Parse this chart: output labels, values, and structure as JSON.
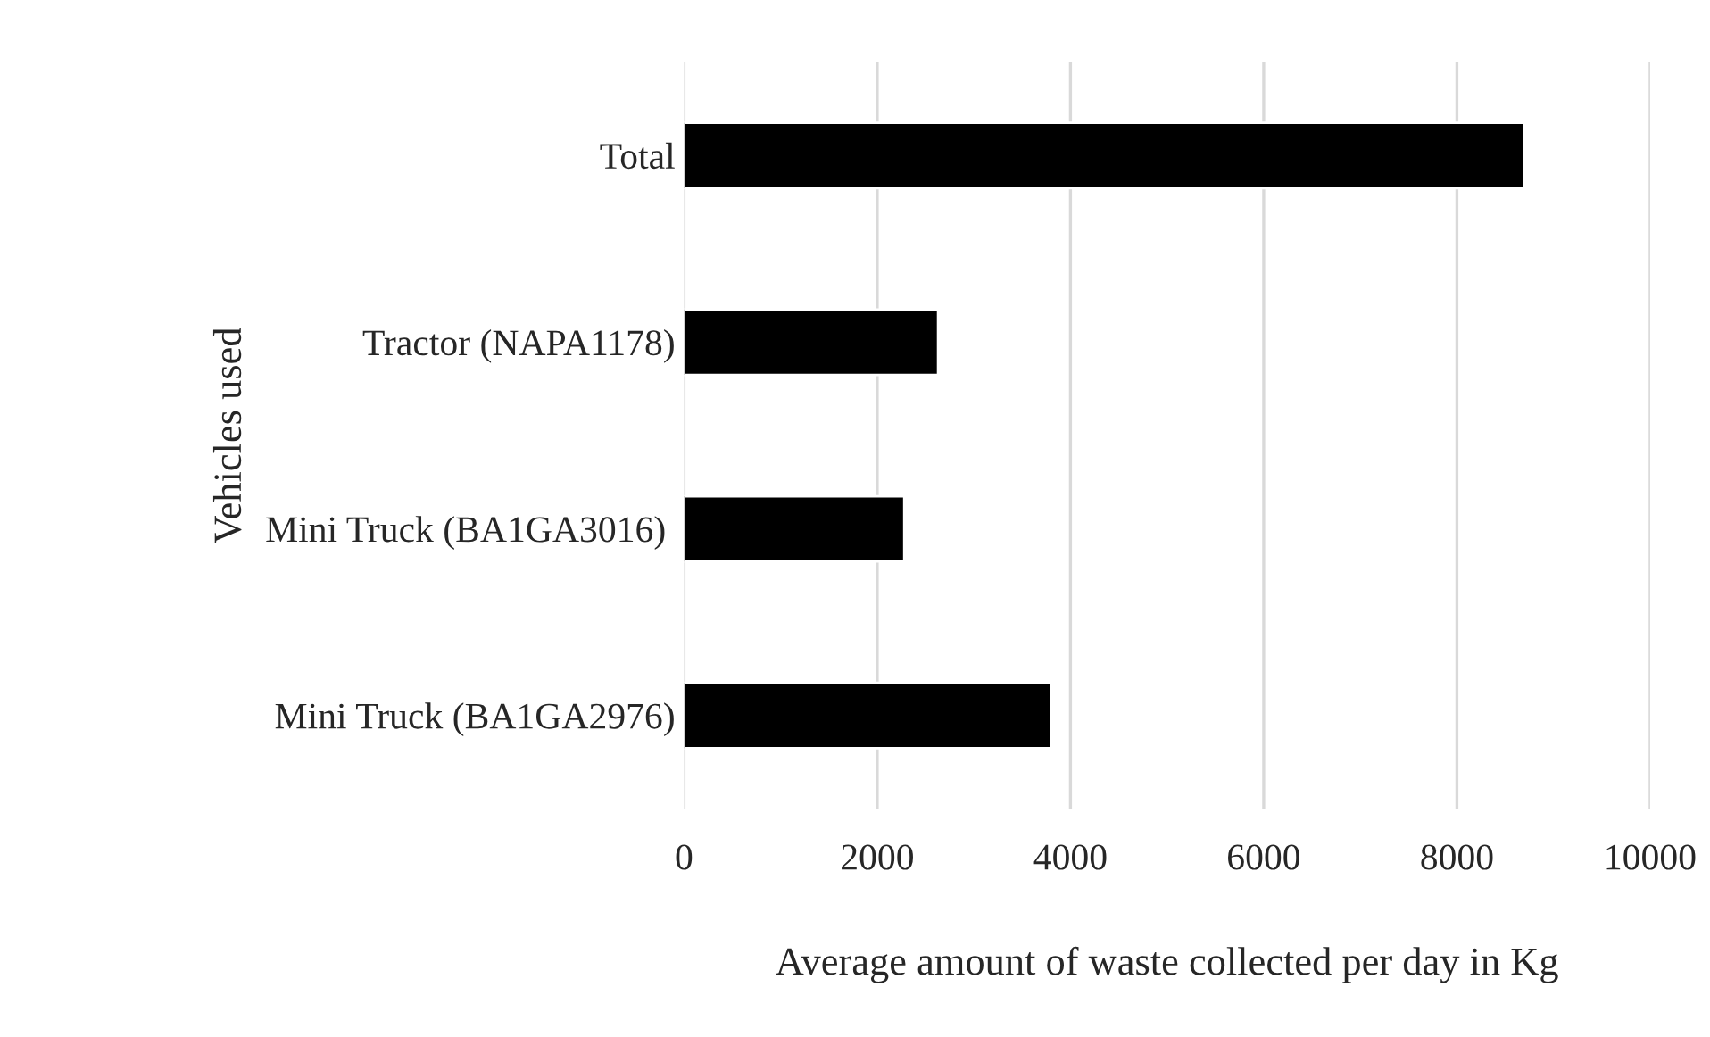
{
  "chart_data": {
    "type": "bar",
    "orientation": "horizontal",
    "categories": [
      "Total",
      "Tractor (NAPA1178)",
      "Mini Truck (BA1GA3016) ",
      "Mini Truck (BA1GA2976)"
    ],
    "values": [
      8700,
      2630,
      2280,
      3800
    ],
    "color": "#000000",
    "xlabel": "Average amount of waste collected per day in Kg",
    "ylabel": "Vehicles used",
    "xlim": [
      0,
      10000
    ],
    "xticks": [
      0,
      2000,
      4000,
      6000,
      8000,
      10000
    ],
    "grid": "x"
  }
}
